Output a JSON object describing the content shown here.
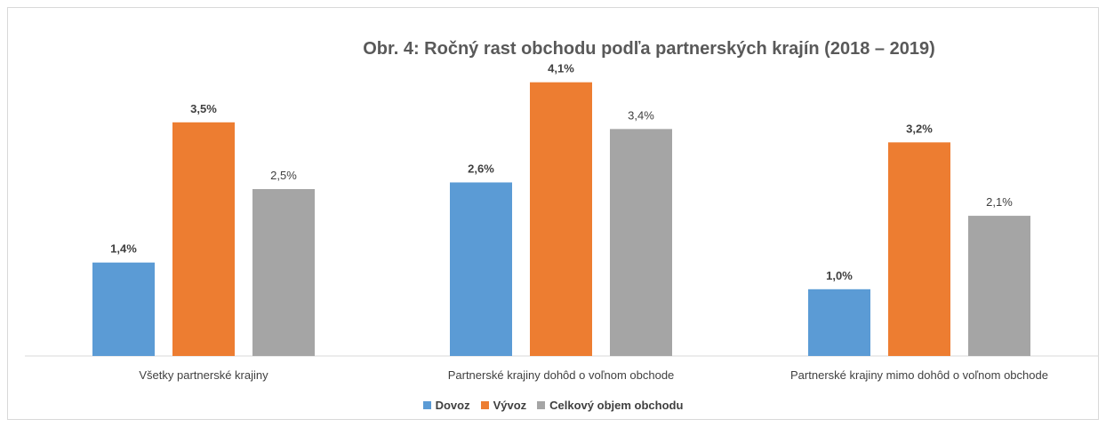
{
  "chart_data": {
    "type": "bar",
    "title": "Obr. 4: Ročný rast obchodu podľa partnerských krajín (2018 – 2019)",
    "categories": [
      "Všetky partnerské krajiny",
      "Partnerské krajiny dohôd o voľnom obchode",
      "Partnerské krajiny mimo dohôd o voľnom obchode"
    ],
    "series": [
      {
        "name": "Dovoz",
        "color": "#5b9bd5",
        "values": [
          1.4,
          2.6,
          1.0
        ],
        "labels": [
          "1,4%",
          "2,6%",
          "1,0%"
        ],
        "bold_labels": true
      },
      {
        "name": "Vývoz",
        "color": "#ed7d31",
        "values": [
          3.5,
          4.1,
          3.2
        ],
        "labels": [
          "3,5%",
          "4,1%",
          "3,2%"
        ],
        "bold_labels": true
      },
      {
        "name": "Celkový objem obchodu",
        "color": "#a5a5a5",
        "values": [
          2.5,
          3.4,
          2.1
        ],
        "labels": [
          "2,5%",
          "3,4%",
          "2,1%"
        ],
        "bold_labels": false
      }
    ],
    "unit": "%",
    "ylim": [
      0,
      4.5
    ],
    "grid": false,
    "legend_position": "bottom"
  }
}
